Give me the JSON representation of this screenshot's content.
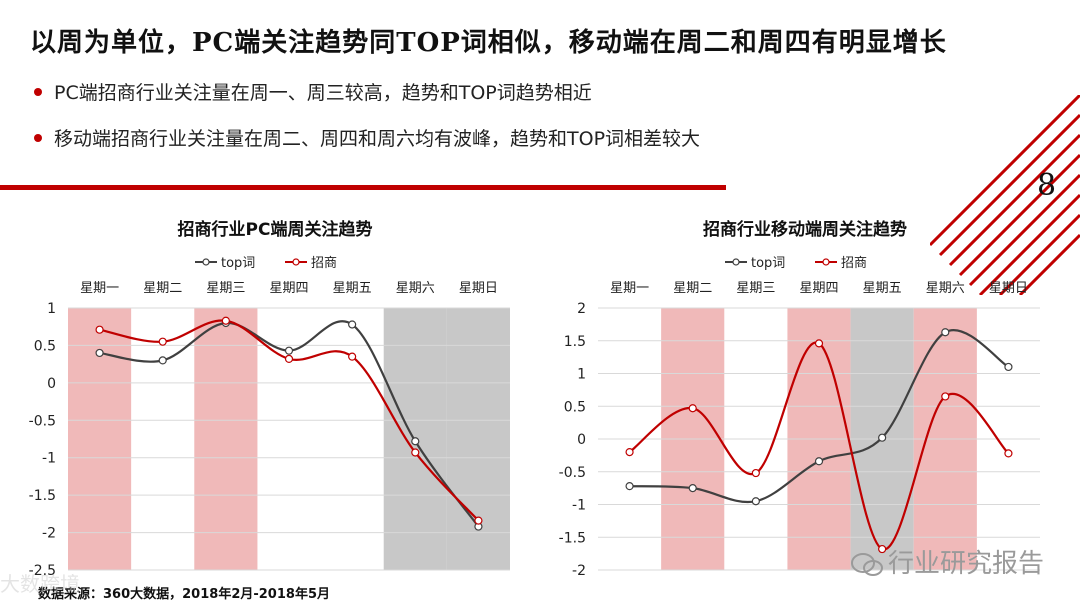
{
  "title": "以周为单位，PC端关注趋势同TOP词相似，移动端在周二和周四有明显增长",
  "bullets": [
    "PC端招商行业关注量在周一、周三较高，趋势和TOP词趋势相近",
    "移动端招商行业关注量在周二、周四和周六均有波峰，趋势和TOP词相差较大"
  ],
  "page_number": "8",
  "source": "数据来源：360大数据，2018年2月-2018年5月",
  "watermark_left": "大数跨境",
  "watermark_right": "行业研究报告",
  "colors": {
    "accent": "#c00000",
    "pink_band": "#f0b9b9",
    "gray_band": "#c8c8c8",
    "top_line": "#404040",
    "zs_line": "#c00000"
  },
  "chart_data": [
    {
      "type": "line",
      "title": "招商行业PC端周关注趋势",
      "categories": [
        "星期一",
        "星期二",
        "星期三",
        "星期四",
        "星期五",
        "星期六",
        "星期日"
      ],
      "series": [
        {
          "name": "top词",
          "values": [
            0.4,
            0.3,
            0.8,
            0.43,
            0.78,
            -0.78,
            -1.92
          ]
        },
        {
          "name": "招商",
          "values": [
            0.71,
            0.55,
            0.83,
            0.32,
            0.35,
            -0.93,
            -1.84
          ]
        }
      ],
      "ylim": [
        -2.5,
        1
      ],
      "yticks": [
        1,
        0.5,
        0,
        -0.5,
        -1,
        -1.5,
        -2,
        -2.5
      ],
      "ytick_labels": [
        "1",
        "0.5",
        "0",
        "-0.5",
        "-1",
        "-1.5",
        "-2",
        "-2.5"
      ],
      "bands": [
        "pink",
        "white",
        "pink",
        "white",
        "white",
        "gray",
        "gray"
      ],
      "legend_position": "top"
    },
    {
      "type": "line",
      "title": "招商行业移动端周关注趋势",
      "categories": [
        "星期一",
        "星期二",
        "星期三",
        "星期四",
        "星期五",
        "星期六",
        "星期日"
      ],
      "series": [
        {
          "name": "top词",
          "values": [
            -0.72,
            -0.75,
            -0.95,
            -0.34,
            0.02,
            1.63,
            1.1
          ]
        },
        {
          "name": "招商",
          "values": [
            -0.2,
            0.47,
            -0.52,
            1.46,
            -1.68,
            0.65,
            -0.22
          ]
        }
      ],
      "ylim": [
        -2,
        2
      ],
      "yticks": [
        2,
        1.5,
        1,
        0.5,
        0,
        -0.5,
        -1,
        -1.5,
        -2
      ],
      "ytick_labels": [
        "2",
        "1.5",
        "1",
        "0.5",
        "0",
        "-0.5",
        "-1",
        "-1.5",
        "-2"
      ],
      "bands": [
        "white",
        "pink",
        "white",
        "pink",
        "gray",
        "pink",
        "white"
      ],
      "legend_position": "top"
    }
  ]
}
